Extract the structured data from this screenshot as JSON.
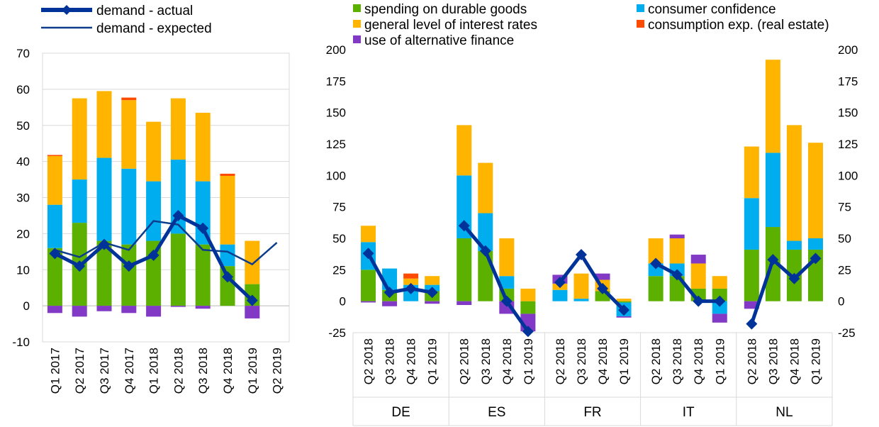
{
  "colors": {
    "durable": "#5BB000",
    "confidence": "#00AEEF",
    "interest": "#FFB400",
    "real_estate": "#FF4B00",
    "alt_finance": "#8139C6",
    "actual": "#003399",
    "expected": "#0D3C8C",
    "grid": "#D9D9D9"
  },
  "legend_left": [
    {
      "label": "demand - actual",
      "key": "actual",
      "style": "thick-line-diamond"
    },
    {
      "label": "demand - expected",
      "key": "expected",
      "style": "thin-line"
    }
  ],
  "legend_right": [
    {
      "label": "spending on durable goods",
      "key": "durable"
    },
    {
      "label": "consumer confidence",
      "key": "confidence"
    },
    {
      "label": "general level of interest rates",
      "key": "interest"
    },
    {
      "label": "consumption exp. (real estate)",
      "key": "real_estate"
    },
    {
      "label": "use of alternative finance",
      "key": "alt_finance"
    }
  ],
  "chart_data": [
    {
      "type": "bar",
      "stacked": true,
      "categories": [
        "Q1 2017",
        "Q2 2017",
        "Q3 2017",
        "Q4 2017",
        "Q1 2018",
        "Q2 2018",
        "Q3 2018",
        "Q4 2018",
        "Q1 2019",
        "Q2 2019"
      ],
      "ylim": [
        -10,
        70
      ],
      "yticks": [
        -10,
        0,
        10,
        20,
        30,
        40,
        50,
        60,
        70
      ],
      "grid": true,
      "series": [
        {
          "name": "spending on durable goods",
          "key": "durable",
          "values": [
            16,
            23,
            18,
            17,
            18,
            20,
            17,
            11,
            6,
            null
          ]
        },
        {
          "name": "consumer confidence",
          "key": "confidence",
          "values": [
            12,
            12,
            23,
            21,
            16.5,
            20.5,
            17.5,
            6,
            0,
            null
          ]
        },
        {
          "name": "general level of interest rates",
          "key": "interest",
          "values": [
            13.5,
            22.5,
            18.5,
            19,
            16.5,
            17,
            19,
            19,
            12,
            null
          ]
        },
        {
          "name": "consumption exp. (real estate)",
          "key": "real_estate",
          "values": [
            0.3,
            0,
            0,
            0.7,
            0,
            0,
            0,
            0.6,
            0,
            null
          ]
        },
        {
          "name": "use of alternative finance",
          "key": "alt_finance",
          "values": [
            -2,
            -3,
            -1.5,
            -2,
            -3,
            -0.3,
            -0.8,
            0,
            -3.5,
            null
          ]
        }
      ],
      "lines": [
        {
          "name": "demand - actual",
          "key": "actual",
          "values": [
            14.5,
            11,
            17,
            11,
            14,
            25,
            21.5,
            8,
            1.5,
            null
          ]
        },
        {
          "name": "demand - expected",
          "key": "expected",
          "values": [
            15.5,
            13.5,
            17.5,
            15.5,
            23.5,
            22.5,
            15.5,
            15,
            11.5,
            17.5
          ]
        }
      ]
    },
    {
      "type": "bar",
      "stacked": true,
      "groups": [
        {
          "label": "DE",
          "categories": [
            "Q2 2018",
            "Q3 2018",
            "Q4 2018",
            "Q1 2019"
          ]
        },
        {
          "label": "ES",
          "categories": [
            "Q2 2018",
            "Q3 2018",
            "Q4 2018",
            "Q1 2019"
          ]
        },
        {
          "label": "FR",
          "categories": [
            "Q2 2018",
            "Q3 2018",
            "Q4 2018",
            "Q1 2019"
          ]
        },
        {
          "label": "IT",
          "categories": [
            "Q2 2018",
            "Q3 2018",
            "Q4 2018",
            "Q1 2019"
          ]
        },
        {
          "label": "NL",
          "categories": [
            "Q2 2018",
            "Q3 2018",
            "Q4 2018",
            "Q1 2019"
          ]
        }
      ],
      "ylim": [
        -25,
        200
      ],
      "yticks": [
        -25,
        0,
        25,
        50,
        75,
        100,
        125,
        150,
        175,
        200
      ],
      "grid": false,
      "series": [
        {
          "name": "spending on durable goods",
          "key": "durable",
          "values": [
            25,
            9,
            0,
            8,
            50,
            40,
            10,
            -10,
            0,
            0,
            8,
            -1,
            20,
            20,
            10,
            10,
            41,
            59,
            41,
            41
          ]
        },
        {
          "name": "consumer confidence",
          "key": "confidence",
          "values": [
            22,
            17,
            13,
            5,
            50,
            30,
            10,
            0,
            9,
            2,
            0,
            -11,
            10,
            10,
            0,
            -10,
            41,
            59,
            7,
            9
          ]
        },
        {
          "name": "general level of interest rates",
          "key": "interest",
          "values": [
            13,
            0,
            5,
            7,
            40,
            40,
            30,
            10,
            5,
            20,
            9,
            2,
            20,
            20,
            20,
            10,
            41,
            74,
            92,
            76
          ]
        },
        {
          "name": "consumption exp. (real estate)",
          "key": "real_estate",
          "values": [
            0,
            0,
            4,
            0,
            0,
            0,
            0,
            0,
            0,
            0,
            0,
            0,
            0,
            0,
            0,
            0,
            0,
            0,
            0,
            0
          ]
        },
        {
          "name": "use of alternative finance",
          "key": "alt_finance",
          "values": [
            -1,
            -4,
            0,
            -2,
            -3,
            0,
            -10,
            -14,
            7,
            0,
            5,
            -1,
            0,
            3,
            7,
            -7,
            -6,
            0,
            0,
            0
          ]
        }
      ],
      "lines": [
        {
          "name": "demand - actual",
          "key": "actual",
          "segments": [
            [
              38,
              7,
              10,
              7
            ],
            [
              60,
              40,
              0,
              -24
            ],
            [
              15,
              37,
              10,
              -7
            ],
            [
              30,
              21,
              0,
              0
            ],
            [
              -18,
              33,
              18,
              34
            ]
          ]
        }
      ]
    }
  ]
}
